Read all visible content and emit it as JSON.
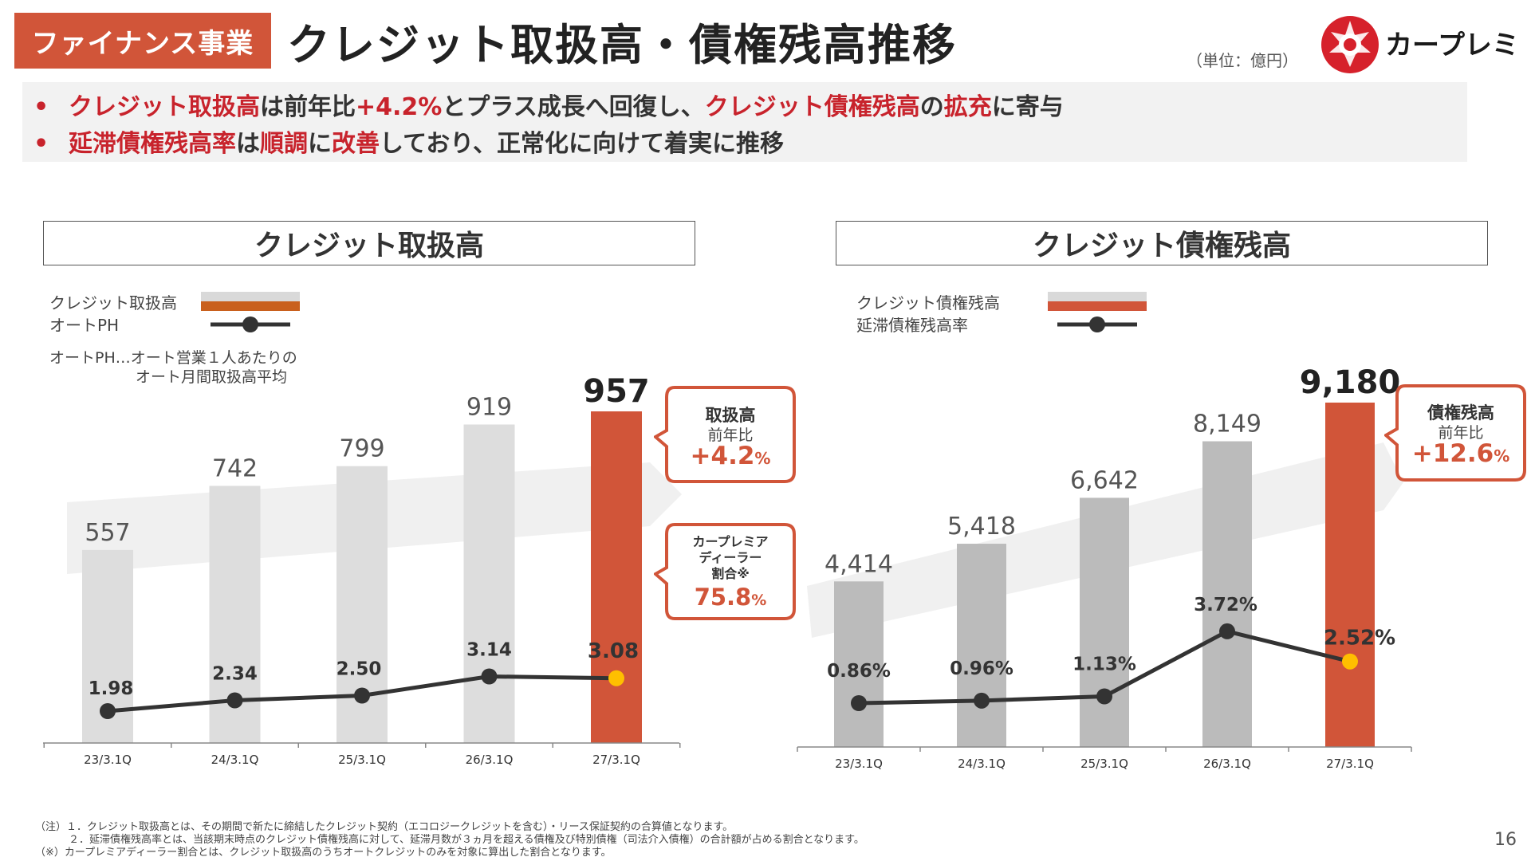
{
  "header": {
    "section": "ファイナンス事業",
    "title": "クレジット取扱高・債権残高推移",
    "unit": "（単位：億円）",
    "brand": "カープレミア"
  },
  "summary": {
    "line1": {
      "bullet": "•",
      "parts": [
        {
          "text": "クレジット取扱高",
          "highlight": true
        },
        {
          "text": "は前年比",
          "highlight": false
        },
        {
          "text": "+4.2%",
          "highlight": true
        },
        {
          "text": "とプラス成長へ回復し、",
          "highlight": false
        },
        {
          "text": "クレジット債権残高",
          "highlight": true
        },
        {
          "text": "の",
          "highlight": false
        },
        {
          "text": "拡充",
          "highlight": true
        },
        {
          "text": "に寄与",
          "highlight": false
        }
      ]
    },
    "line2": {
      "bullet": "•",
      "parts": [
        {
          "text": "延滞債権残高率",
          "highlight": true
        },
        {
          "text": "は",
          "highlight": false
        },
        {
          "text": "順調",
          "highlight": true
        },
        {
          "text": "に",
          "highlight": false
        },
        {
          "text": "改善",
          "highlight": true
        },
        {
          "text": "しており、正常化に向けて着実に推移",
          "highlight": false
        }
      ]
    }
  },
  "left": {
    "header": "クレジット取扱高",
    "legend": {
      "bar_label": "クレジット取扱高",
      "line_label": "オートPH",
      "note_line1": "オートPH…オート営業１人あたりの",
      "note_line2": "オート月間取扱高平均"
    },
    "callout1": {
      "title": "取扱高",
      "sub": "前年比",
      "value": "+4.2",
      "unit": "%"
    },
    "callout2": {
      "line1": "カープレミア",
      "line2": "ディーラー",
      "line3": "割合※",
      "value": "75.8",
      "unit": "%"
    }
  },
  "right": {
    "header": "クレジット債権残高",
    "legend": {
      "bar_label": "クレジット債権残高",
      "line_label": "延滞債権残高率"
    },
    "callout1": {
      "title": "債権残高",
      "sub": "前年比",
      "value": "+12.6",
      "unit": "%"
    }
  },
  "colors": {
    "accent": "#d15539",
    "highlight_text": "#c8232c",
    "left_bar": "#dddddd",
    "right_bar": "#bbbbbb",
    "line": "#333333",
    "last_point": "#ffbf00",
    "orange_legend": "#c9601d"
  },
  "chart_data": [
    {
      "type": "bar",
      "categories": [
        "23/3.1Q",
        "24/3.1Q",
        "25/3.1Q",
        "26/3.1Q",
        "27/3.1Q"
      ],
      "series": [
        {
          "name": "クレジット取扱高",
          "values": [
            557,
            742,
            799,
            919,
            957
          ],
          "value_labels": [
            "557",
            "742",
            "799",
            "919",
            "957"
          ]
        },
        {
          "name": "オートPH",
          "type": "line",
          "values": [
            1.98,
            2.34,
            2.5,
            3.14,
            3.08
          ],
          "value_labels": [
            "1.98",
            "2.34",
            "2.50",
            "3.14",
            "3.08"
          ]
        }
      ]
    },
    {
      "type": "bar",
      "categories": [
        "23/3.1Q",
        "24/3.1Q",
        "25/3.1Q",
        "26/3.1Q",
        "27/3.1Q"
      ],
      "series": [
        {
          "name": "クレジット債権残高",
          "values": [
            4414,
            5418,
            6642,
            8149,
            9180
          ],
          "value_labels": [
            "4,414",
            "5,418",
            "6,642",
            "8,149",
            "9,180"
          ]
        },
        {
          "name": "延滞債権残高率",
          "type": "line",
          "values": [
            0.86,
            0.96,
            1.13,
            3.72,
            2.52
          ],
          "value_labels": [
            "0.86%",
            "0.96%",
            "1.13%",
            "3.72%",
            "2.52%"
          ]
        }
      ]
    }
  ],
  "footnotes": {
    "note1": "（注）１．クレジット取扱高とは、その期間で新たに締結したクレジット契約（エコロジークレジットを含む）・リース保証契約の合算値となります。",
    "note2": "２．延滞債権残高率とは、当該期末時点のクレジット債権残高に対して、延滞月数が３ヵ月を超える債権及び特別債権（司法介入債権）の合計額が占める割合となります。",
    "note3": "（※）カープレミアディーラー割合とは、クレジット取扱高のうちオートクレジットのみを対象に算出した割合となります。"
  },
  "page_number": "16"
}
